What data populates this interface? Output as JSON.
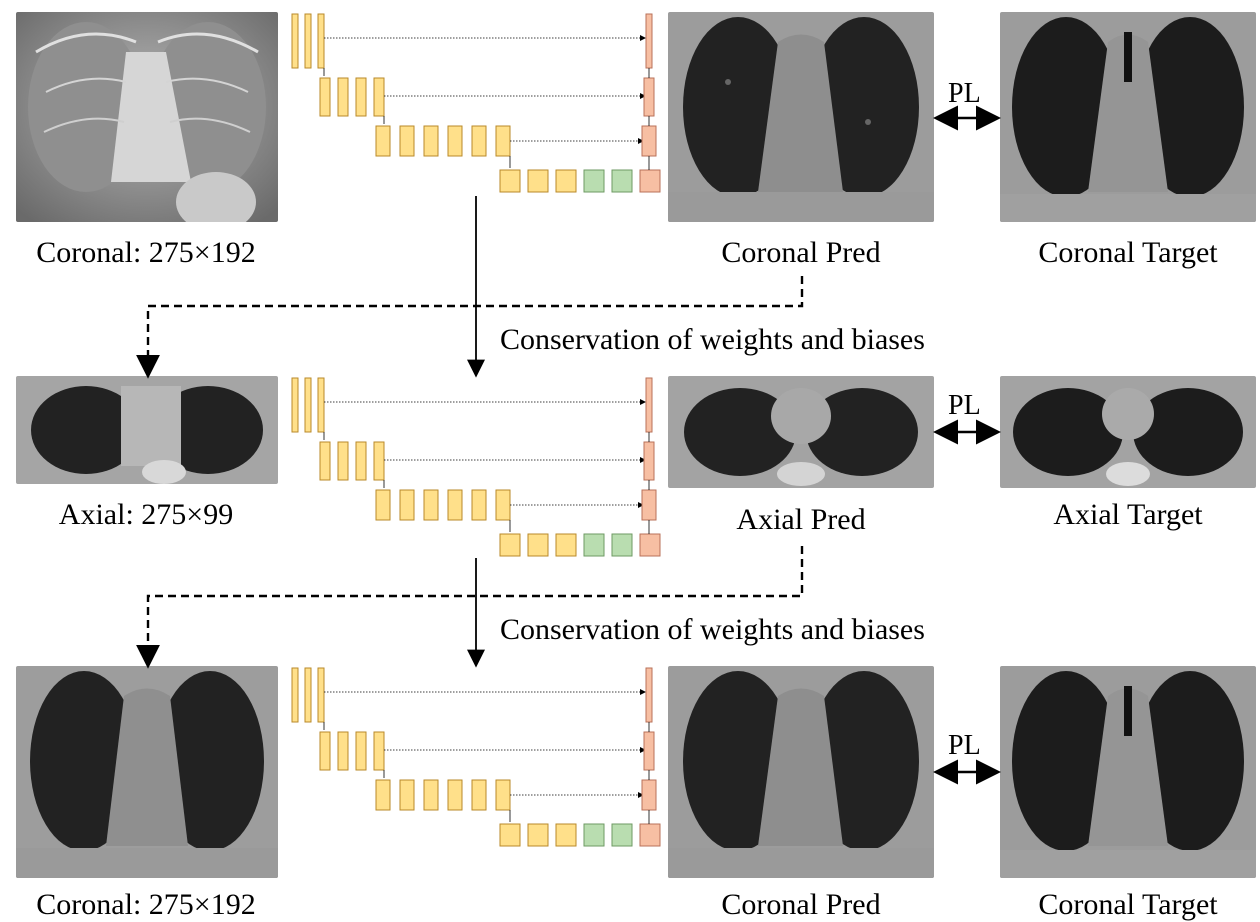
{
  "rows": [
    {
      "input_label": "Coronal: 275×192",
      "pred_label": "Coronal Pred",
      "target_label": "Coronal Target",
      "pl_label": "PL"
    },
    {
      "input_label": "Axial: 275×99",
      "pred_label": "Axial Pred",
      "target_label": "Axial Target",
      "pl_label": "PL"
    },
    {
      "input_label": "Coronal: 275×192",
      "pred_label": "Coronal Pred",
      "target_label": "Coronal Target",
      "pl_label": "PL"
    }
  ],
  "transitions": [
    {
      "label": "Conservation of weights and biases"
    },
    {
      "label": "Conservation of weights and biases"
    }
  ],
  "colors": {
    "encoder_block": "#FFE08A",
    "encoder_border": "#B8892A",
    "bottleneck_block": "#B9DDB0",
    "bottleneck_border": "#6E9A63",
    "decoder_block": "#F7BFA3",
    "decoder_border": "#B8725A"
  }
}
